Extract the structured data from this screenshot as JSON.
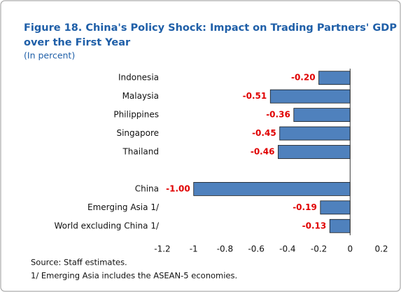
{
  "chart_data": {
    "type": "hbar",
    "title": "Figure 18. China's Policy Shock: Impact on Trading Partners' GDP over the First Year",
    "subtitle": "(In percent)",
    "categories": [
      "Indonesia",
      "Malaysia",
      "Philippines",
      "Singapore",
      "Thailand",
      null,
      "China",
      "Emerging Asia 1/",
      "World excluding China 1/"
    ],
    "values": [
      -0.2,
      -0.51,
      -0.36,
      -0.45,
      -0.46,
      null,
      -1.0,
      -0.19,
      -0.13
    ],
    "value_labels": [
      "-0.20",
      "-0.51",
      "-0.36",
      "-0.45",
      "-0.46",
      null,
      "-1.00",
      "-0.19",
      "-0.13"
    ],
    "color": "#4f81bd",
    "value_label_color": "#e00000",
    "xlim": [
      -1.2,
      0.2
    ],
    "xticks": [
      -1.2,
      -1,
      -0.8,
      -0.6,
      -0.4,
      -0.2,
      0,
      0.2
    ],
    "grid": false,
    "source": "Source: Staff estimates.",
    "note": "1/ Emerging Asia includes the ASEAN-5 economies."
  }
}
